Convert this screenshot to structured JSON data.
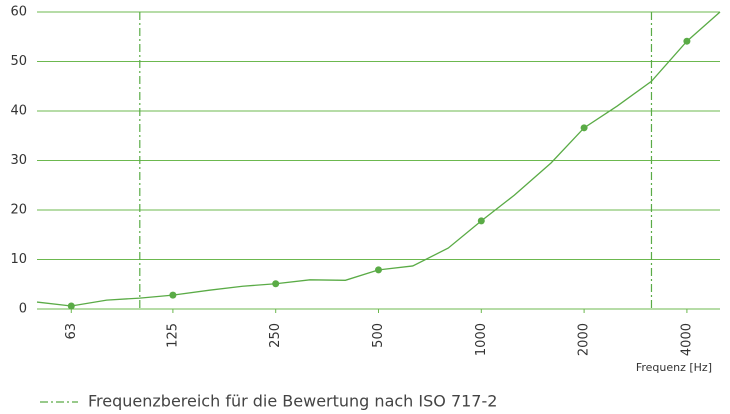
{
  "chart_data": {
    "type": "line",
    "x": [
      50,
      63,
      80,
      100,
      125,
      160,
      200,
      250,
      315,
      400,
      500,
      630,
      800,
      1000,
      1250,
      1600,
      2000,
      2500,
      3150,
      4000,
      5000
    ],
    "series": [
      {
        "color": "#5aab46",
        "values": [
          1.4,
          0.6,
          1.8,
          2.2,
          2.8,
          3.8,
          4.6,
          5.1,
          5.9,
          5.8,
          7.9,
          8.7,
          12.3,
          17.8,
          23,
          29.5,
          36.6,
          41,
          46,
          54.1,
          60
        ]
      },
      {
        "color": "#5aab46",
        "marker": "dot",
        "values": [
          null,
          0.6,
          null,
          null,
          2.8,
          null,
          null,
          5.1,
          null,
          null,
          7.9,
          null,
          null,
          17.8,
          null,
          null,
          36.6,
          null,
          null,
          54.1,
          null
        ]
      }
    ],
    "xlim": [
      50,
      5000
    ],
    "xscale": "log",
    "xticks": [
      63,
      125,
      250,
      500,
      1000,
      2000,
      4000
    ],
    "ylim": [
      0,
      60
    ],
    "yticks": [
      0,
      10,
      20,
      30,
      40,
      50,
      60
    ],
    "grid": true,
    "vlines": [
      100,
      3150
    ],
    "xlabel": "Frequenz [Hz]",
    "legend": "Frequenzbereich für die Bewertung nach ISO 717-2"
  }
}
